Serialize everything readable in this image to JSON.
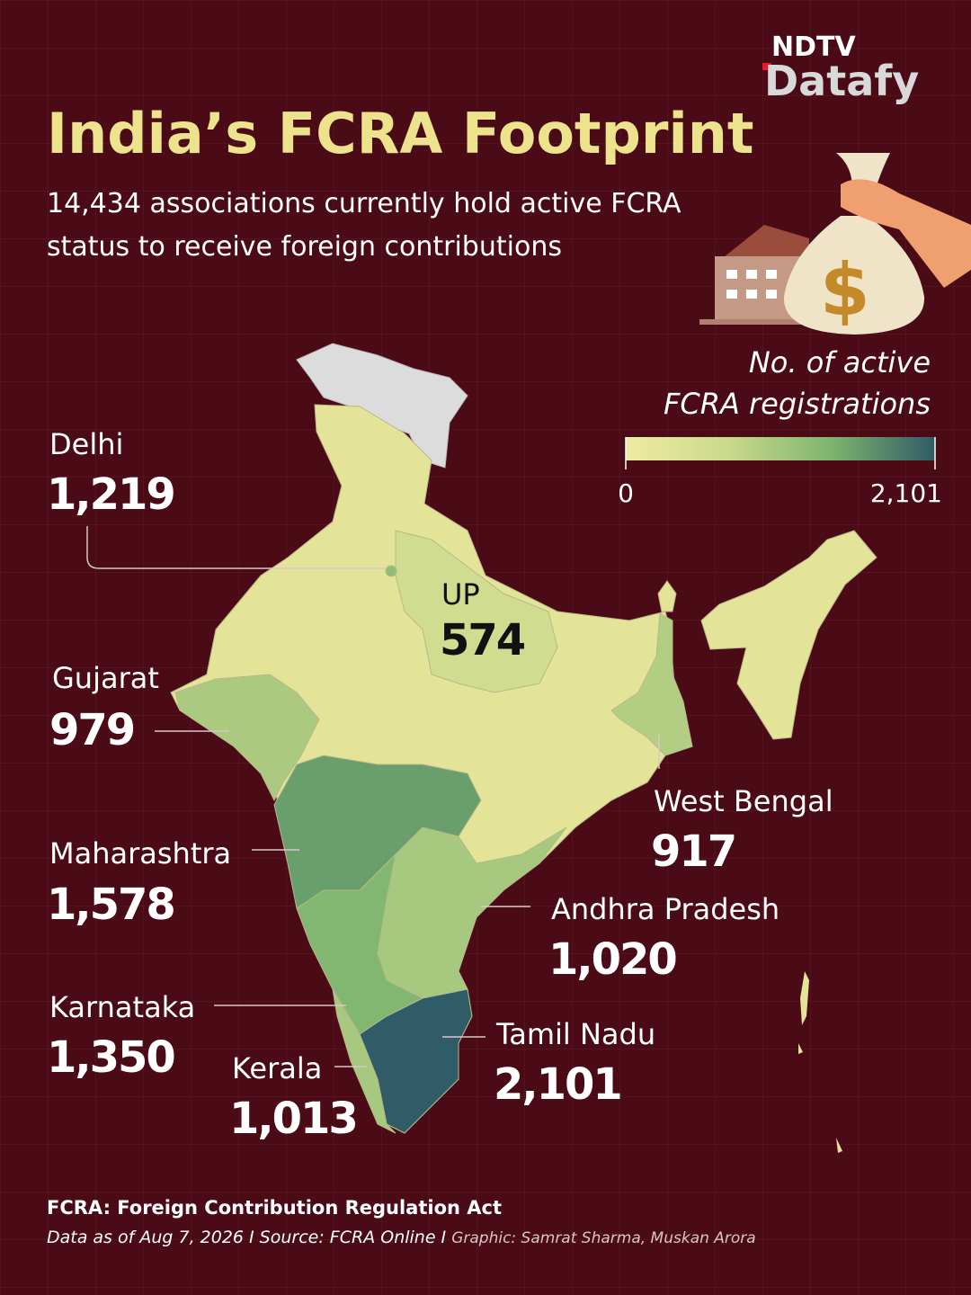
{
  "logo": {
    "top": "NDTV",
    "bottom": "Datafy"
  },
  "title": "India’s FCRA Footprint",
  "subtitle": [
    "14,434 associations currently hold active FCRA",
    "status to receive foreign contributions"
  ],
  "legend": {
    "title": [
      "No. of active",
      "FCRA registrations"
    ],
    "min": 0,
    "max": {
      "value": 2101,
      "label": "2,101"
    },
    "colors": [
      "#eeeba2",
      "#c9d98c",
      "#7db46f",
      "#2f5c66"
    ]
  },
  "states": [
    {
      "name": "Delhi",
      "value": 1219,
      "value_label": "1,219"
    },
    {
      "name": "UP",
      "value": 574,
      "value_label": "574"
    },
    {
      "name": "Gujarat",
      "value": 979,
      "value_label": "979"
    },
    {
      "name": "West Bengal",
      "value": 917,
      "value_label": "917"
    },
    {
      "name": "Maharashtra",
      "value": 1578,
      "value_label": "1,578"
    },
    {
      "name": "Andhra Pradesh",
      "value": 1020,
      "value_label": "1,020"
    },
    {
      "name": "Karnataka",
      "value": 1350,
      "value_label": "1,350"
    },
    {
      "name": "Tamil Nadu",
      "value": 2101,
      "value_label": "2,101"
    },
    {
      "name": "Kerala",
      "value": 1013,
      "value_label": "1,013"
    }
  ],
  "footnote": "FCRA: Foreign Contribution Regulation Act",
  "source": "Data as of Aug 7, 2026 I Source: FCRA Online I ",
  "credit": "Graphic: Samrat Sharma, Muskan Arora"
}
